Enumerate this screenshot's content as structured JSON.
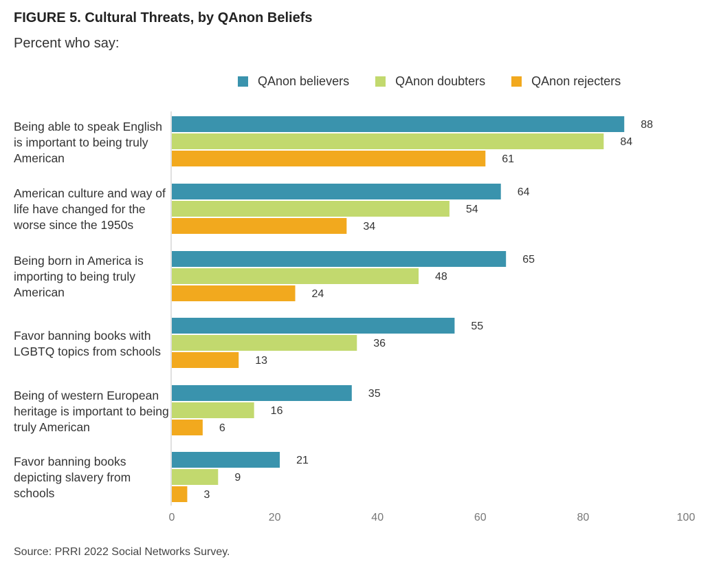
{
  "figure": {
    "title": "FIGURE 5.  Cultural Threats, by QAnon Beliefs",
    "subtitle": "Percent who say:",
    "source": "Source: PRRI 2022 Social Networks Survey."
  },
  "chart_data": {
    "type": "bar",
    "orientation": "horizontal",
    "categories": [
      "Being able to speak English is important to being truly American",
      "American culture and way of life have changed for the worse since the 1950s",
      "Being born in America is importing to being truly American",
      "Favor banning books with LGBTQ topics from schools",
      "Being of western European heritage is important to being truly American",
      "Favor banning books depicting slavery from schools"
    ],
    "series": [
      {
        "name": "QAnon believers",
        "color": "#3a93ad",
        "values": [
          88,
          64,
          65,
          55,
          35,
          21
        ]
      },
      {
        "name": "QAnon doubters",
        "color": "#c2d96e",
        "values": [
          84,
          54,
          48,
          36,
          16,
          9
        ]
      },
      {
        "name": "QAnon rejecters",
        "color": "#f2a91e",
        "values": [
          61,
          34,
          24,
          13,
          6,
          3
        ]
      }
    ],
    "xlim": [
      0,
      100
    ],
    "xticks": [
      0,
      20,
      40,
      60,
      80,
      100
    ],
    "legend_position": "top",
    "grid": false,
    "data_labels": true
  }
}
